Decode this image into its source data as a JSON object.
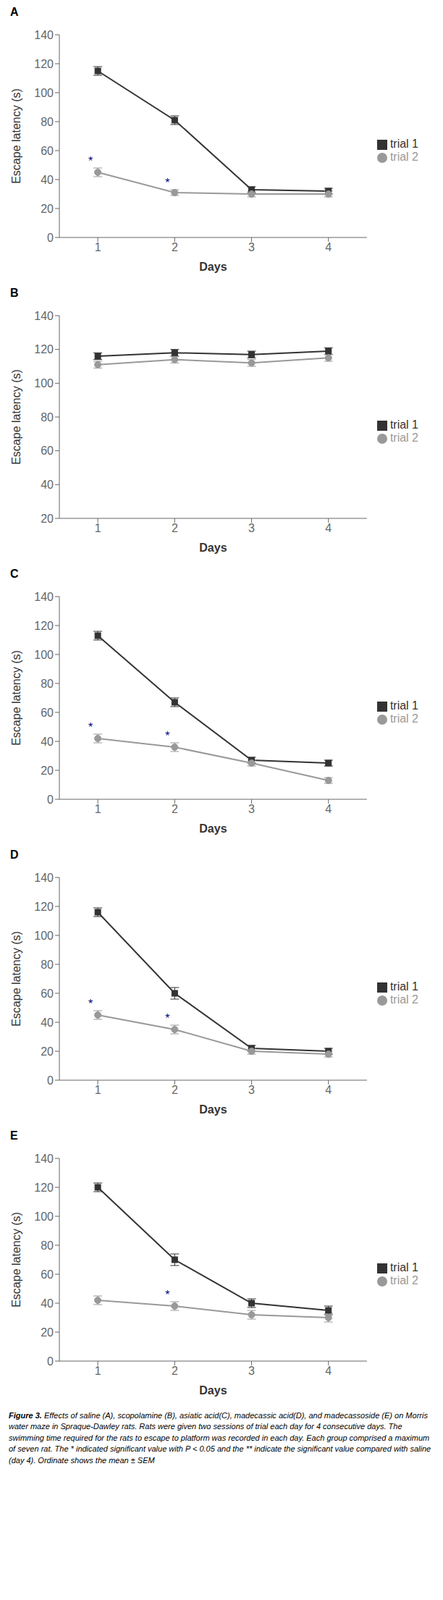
{
  "chart_data": [
    {
      "type": "line",
      "title": "A",
      "xlabel": "Days",
      "ylabel": "Escape latency (s)",
      "x": [
        1,
        2,
        3,
        4
      ],
      "xlim": [
        0.5,
        4.5
      ],
      "xticks": [
        1,
        2,
        3,
        4
      ],
      "ylim": [
        0,
        140
      ],
      "yticks": [
        0,
        20,
        40,
        60,
        80,
        100,
        120,
        140
      ],
      "grid": false,
      "legend": "right",
      "series": [
        {
          "name": "trial 1",
          "color": "#333333",
          "marker": "square",
          "values": [
            115,
            81,
            33,
            32
          ],
          "errors": [
            3,
            3,
            2,
            2
          ]
        },
        {
          "name": "trial 2",
          "color": "#999999",
          "marker": "circle",
          "values": [
            45,
            31,
            30,
            30
          ],
          "errors": [
            3,
            2,
            2,
            2
          ]
        }
      ],
      "annotations": [
        {
          "text": "*",
          "x": 1,
          "series": "trial 2",
          "color": "#000080"
        },
        {
          "text": "*",
          "x": 2,
          "series": "trial 2",
          "color": "#000080"
        }
      ]
    },
    {
      "type": "line",
      "title": "B",
      "xlabel": "Days",
      "ylabel": "Escape latency (s)",
      "x": [
        1,
        2,
        3,
        4
      ],
      "xlim": [
        0.5,
        4.5
      ],
      "xticks": [
        1,
        2,
        3,
        4
      ],
      "ylim": [
        20,
        140
      ],
      "yticks": [
        20,
        40,
        60,
        80,
        100,
        120,
        140
      ],
      "grid": false,
      "legend": "right",
      "series": [
        {
          "name": "trial 1",
          "color": "#333333",
          "marker": "square",
          "values": [
            116,
            118,
            117,
            119
          ],
          "errors": [
            2,
            2,
            2,
            2
          ]
        },
        {
          "name": "trial 2",
          "color": "#999999",
          "marker": "circle",
          "values": [
            111,
            114,
            112,
            115
          ],
          "errors": [
            2,
            2,
            2,
            2
          ]
        }
      ],
      "annotations": []
    },
    {
      "type": "line",
      "title": "C",
      "xlabel": "Days",
      "ylabel": "Escape latency (s)",
      "x": [
        1,
        2,
        3,
        4
      ],
      "xlim": [
        0.5,
        4.5
      ],
      "xticks": [
        1,
        2,
        3,
        4
      ],
      "ylim": [
        0,
        140
      ],
      "yticks": [
        0,
        20,
        40,
        60,
        80,
        100,
        120,
        140
      ],
      "grid": false,
      "legend": "right",
      "series": [
        {
          "name": "trial 1",
          "color": "#333333",
          "marker": "square",
          "values": [
            113,
            67,
            27,
            25
          ],
          "errors": [
            3,
            3,
            2,
            2
          ]
        },
        {
          "name": "trial 2",
          "color": "#999999",
          "marker": "circle",
          "values": [
            42,
            36,
            25,
            13
          ],
          "errors": [
            3,
            3,
            2,
            2
          ]
        }
      ],
      "annotations": [
        {
          "text": "*",
          "x": 1,
          "series": "trial 2",
          "color": "#000080"
        },
        {
          "text": "*",
          "x": 2,
          "series": "trial 2",
          "color": "#000080"
        }
      ]
    },
    {
      "type": "line",
      "title": "D",
      "xlabel": "Days",
      "ylabel": "Escape latency (s)",
      "x": [
        1,
        2,
        3,
        4
      ],
      "xlim": [
        0.5,
        4.5
      ],
      "xticks": [
        1,
        2,
        3,
        4
      ],
      "ylim": [
        0,
        140
      ],
      "yticks": [
        0,
        20,
        40,
        60,
        80,
        100,
        120,
        140
      ],
      "grid": false,
      "legend": "right",
      "series": [
        {
          "name": "trial 1",
          "color": "#333333",
          "marker": "square",
          "values": [
            116,
            60,
            22,
            20
          ],
          "errors": [
            3,
            4,
            2,
            2
          ]
        },
        {
          "name": "trial 2",
          "color": "#999999",
          "marker": "circle",
          "values": [
            45,
            35,
            20,
            18
          ],
          "errors": [
            3,
            3,
            2,
            2
          ]
        }
      ],
      "annotations": [
        {
          "text": "*",
          "x": 1,
          "series": "trial 2",
          "color": "#000080"
        },
        {
          "text": "*",
          "x": 2,
          "series": "trial 2",
          "color": "#000080"
        }
      ]
    },
    {
      "type": "line",
      "title": "E",
      "xlabel": "Days",
      "ylabel": "Escape latency (s)",
      "x": [
        1,
        2,
        3,
        4
      ],
      "xlim": [
        0.5,
        4.5
      ],
      "xticks": [
        1,
        2,
        3,
        4
      ],
      "ylim": [
        0,
        140
      ],
      "yticks": [
        0,
        20,
        40,
        60,
        80,
        100,
        120,
        140
      ],
      "grid": false,
      "legend": "right",
      "series": [
        {
          "name": "trial 1",
          "color": "#333333",
          "marker": "square",
          "values": [
            120,
            70,
            40,
            35
          ],
          "errors": [
            3,
            4,
            3,
            3
          ]
        },
        {
          "name": "trial 2",
          "color": "#999999",
          "marker": "circle",
          "values": [
            42,
            38,
            32,
            30
          ],
          "errors": [
            3,
            3,
            3,
            3
          ]
        }
      ],
      "annotations": [
        {
          "text": "*",
          "x": 2,
          "series": "trial 2",
          "color": "#000080"
        }
      ]
    }
  ],
  "caption": [
    "Figure 3.",
    " Effects of saline (A), scopolamine (B), asiatic acid(C), madecassic acid(D), and madecassoside (E) on Morris water maze in Spraque-Dawley rats. Rats were given two sessions of trial each day for 4 consecutive days. The swimming time required for the rats to escape to platform was recorded in each day. Each group comprised a maximum of seven rat. The * indicated significant value with P < 0.05 and the ** indicate the significant value compared with saline (day 4). Ordinate shows the mean ± SEM"
  ]
}
